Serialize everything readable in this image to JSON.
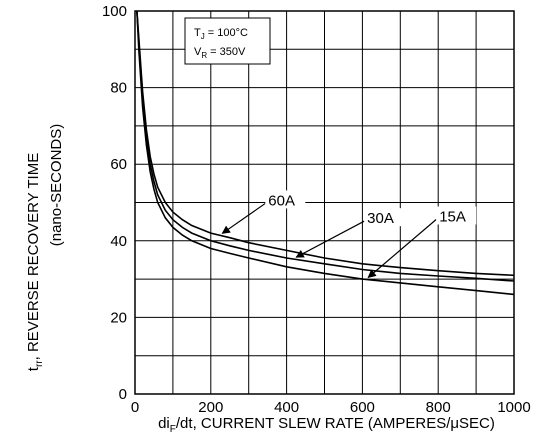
{
  "chart_data": {
    "type": "line",
    "xlabel_parts": [
      "di",
      "F",
      "/dt, CURRENT SLEW RATE (AMPERES/",
      "μ",
      "SEC)"
    ],
    "ylabel_parts": [
      "t",
      "rr",
      ", REVERSE RECOVERY TIME"
    ],
    "ylabel2": "(nano-SECONDS)",
    "xlim": [
      0,
      1000
    ],
    "ylim": [
      0,
      100
    ],
    "x_ticks": [
      0,
      200,
      400,
      600,
      800,
      1000
    ],
    "y_ticks": [
      0,
      20,
      40,
      60,
      80,
      100
    ],
    "grid": true,
    "conditions": [
      {
        "sym": "T",
        "sub": "J",
        "rest": " = 100°C"
      },
      {
        "sym": "V",
        "sub": "R",
        "rest": " = 350V"
      }
    ],
    "x": [
      5,
      10,
      20,
      30,
      40,
      50,
      60,
      80,
      100,
      125,
      150,
      200,
      250,
      300,
      400,
      500,
      600,
      700,
      800,
      900,
      1000
    ],
    "series": [
      {
        "name": "60A",
        "values": [
          100,
          93,
          79,
          69,
          62,
          57.5,
          54,
          50,
          47.5,
          45.5,
          44,
          42,
          40.8,
          39.5,
          37.5,
          35.5,
          34,
          33,
          32.2,
          31.5,
          31
        ]
      },
      {
        "name": "30A",
        "values": [
          100,
          92,
          77,
          67,
          60,
          55.5,
          52,
          48,
          45.5,
          43.5,
          42,
          40,
          38.7,
          37.5,
          35.5,
          34,
          32.5,
          31.5,
          30.8,
          30.2,
          29.5
        ]
      },
      {
        "name": "15A",
        "values": [
          100,
          90,
          75,
          65,
          58,
          53.5,
          50,
          46,
          43.5,
          41.5,
          40,
          38,
          36.7,
          35.5,
          33.2,
          31.5,
          30,
          29,
          28,
          27,
          26
        ]
      }
    ],
    "annotations": [
      {
        "text": "60A",
        "series": 0,
        "at_x": 225
      },
      {
        "text": "30A",
        "series": 1,
        "at_x": 420
      },
      {
        "text": "15A",
        "series": 2,
        "at_x": 610
      }
    ]
  }
}
